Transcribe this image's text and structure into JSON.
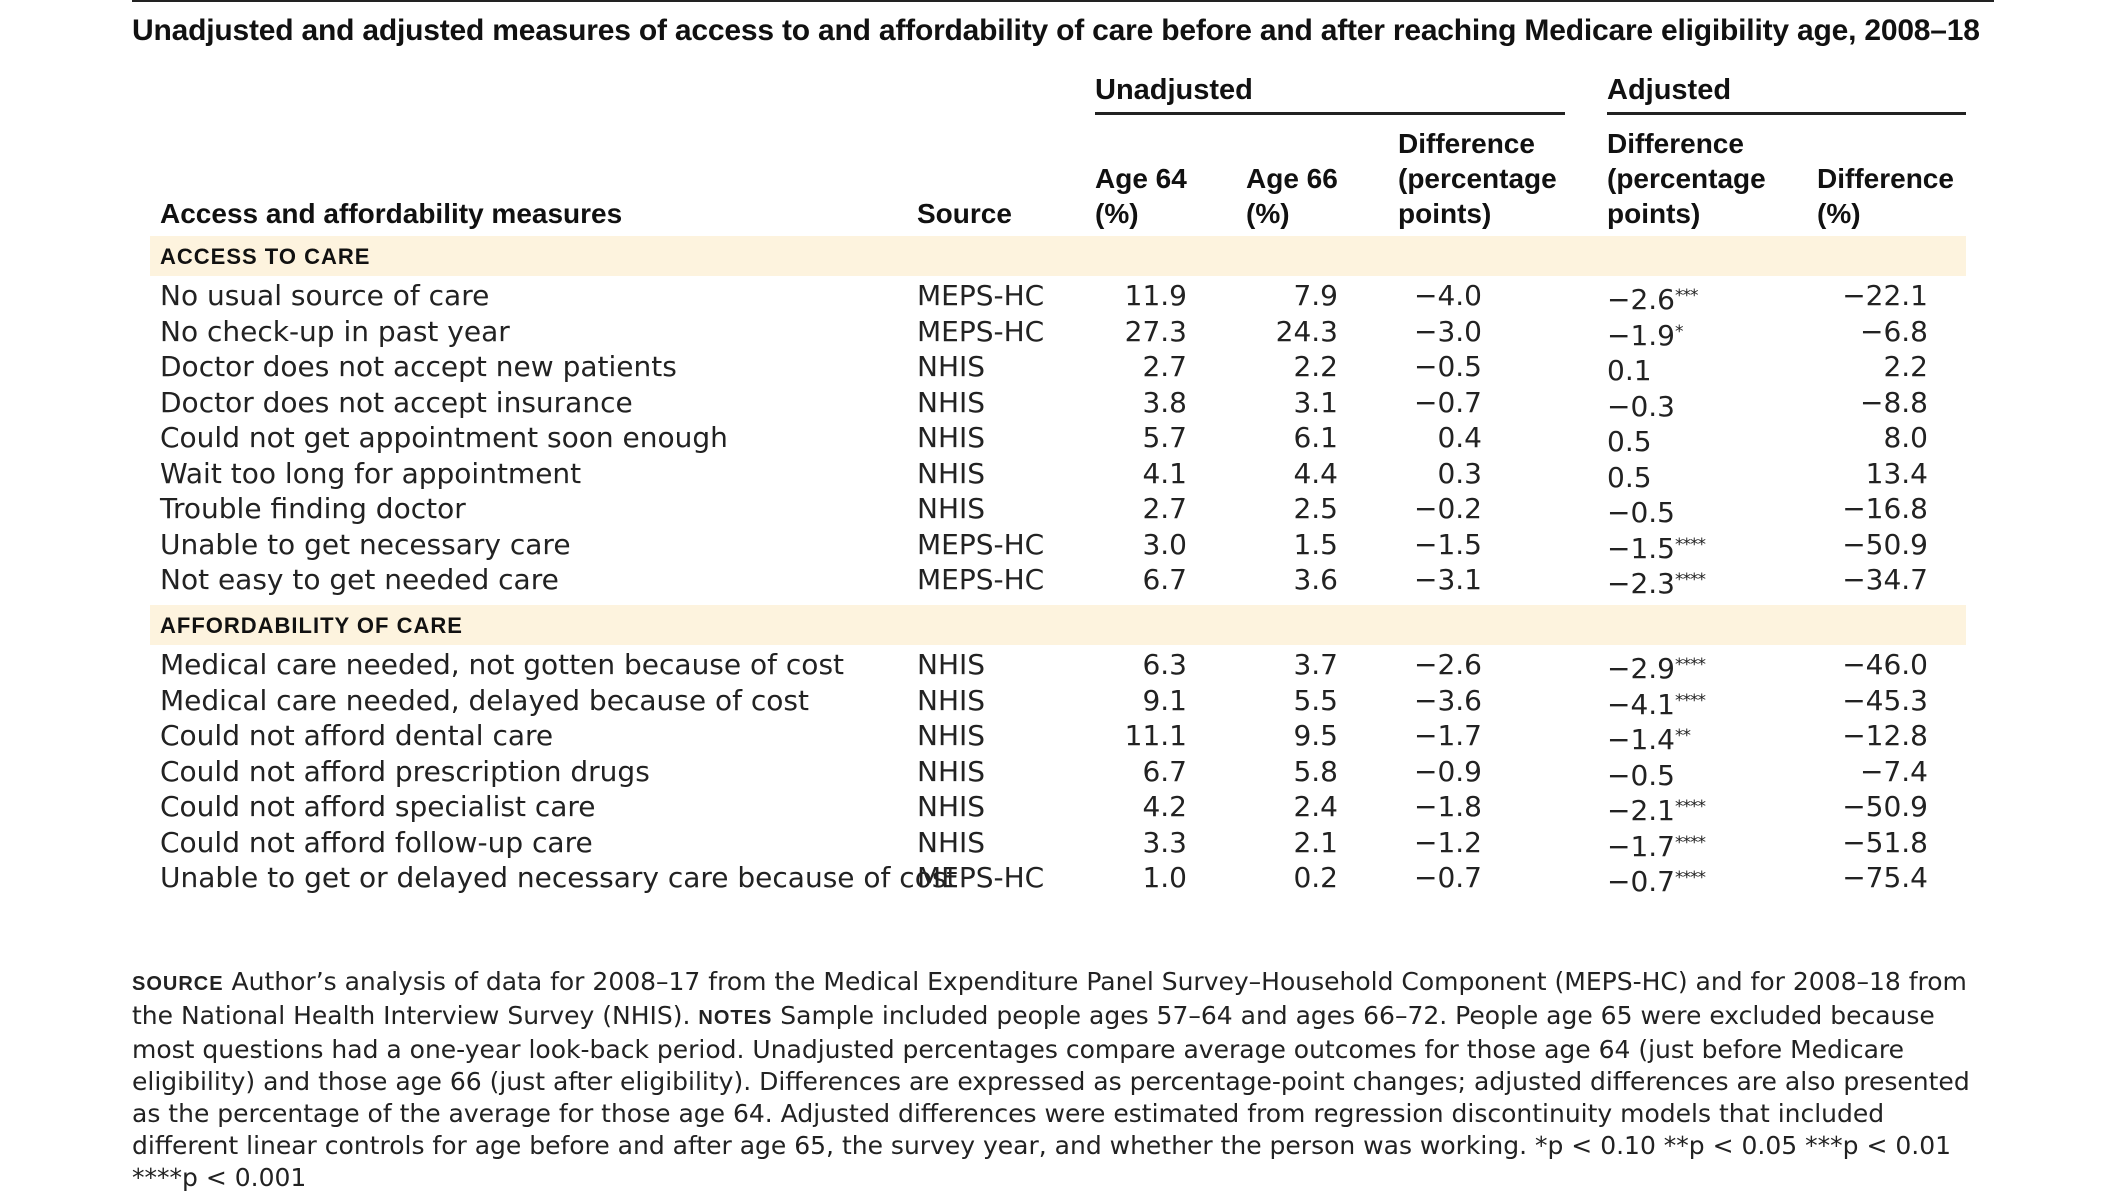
{
  "title": "Unadjusted and adjusted measures of access to and affordability of care before and after reaching Medicare eligibility age, 2008–18",
  "groups": {
    "unadjusted": "Unadjusted",
    "adjusted": "Adjusted"
  },
  "columns": {
    "measure": "Access and affordability measures",
    "source": "Source",
    "age64": [
      "Age 64",
      "(%)"
    ],
    "age66": [
      "Age 66",
      "(%)"
    ],
    "diff_unadj": [
      "Difference",
      "(percentage",
      "points)"
    ],
    "diff_adj_pp": [
      "Difference",
      "(percentage",
      "points)"
    ],
    "diff_adj_pct": [
      "Difference",
      "(%)"
    ]
  },
  "sections": [
    {
      "title": "ACCESS TO CARE",
      "rows": [
        {
          "measure": "No usual source of care",
          "source": "MEPS-HC",
          "age64": "11.9",
          "age66": "7.9",
          "diff": "−4.0",
          "adj": "−2.6",
          "stars": "***",
          "adj_pct": "−22.1"
        },
        {
          "measure": "No check-up in past year",
          "source": "MEPS-HC",
          "age64": "27.3",
          "age66": "24.3",
          "diff": "−3.0",
          "adj": "−1.9",
          "stars": "*",
          "adj_pct": "−6.8"
        },
        {
          "measure": "Doctor does not accept new patients",
          "source": "NHIS",
          "age64": "2.7",
          "age66": "2.2",
          "diff": "−0.5",
          "adj": "0.1",
          "stars": "",
          "adj_pct": "2.2"
        },
        {
          "measure": "Doctor does not accept insurance",
          "source": "NHIS",
          "age64": "3.8",
          "age66": "3.1",
          "diff": "−0.7",
          "adj": "−0.3",
          "stars": "",
          "adj_pct": "−8.8"
        },
        {
          "measure": "Could not get appointment soon enough",
          "source": "NHIS",
          "age64": "5.7",
          "age66": "6.1",
          "diff": "0.4",
          "adj": "0.5",
          "stars": "",
          "adj_pct": "8.0"
        },
        {
          "measure": "Wait too long for appointment",
          "source": "NHIS",
          "age64": "4.1",
          "age66": "4.4",
          "diff": "0.3",
          "adj": "0.5",
          "stars": "",
          "adj_pct": "13.4"
        },
        {
          "measure": "Trouble finding doctor",
          "source": "NHIS",
          "age64": "2.7",
          "age66": "2.5",
          "diff": "−0.2",
          "adj": "−0.5",
          "stars": "",
          "adj_pct": "−16.8"
        },
        {
          "measure": "Unable to get necessary care",
          "source": "MEPS-HC",
          "age64": "3.0",
          "age66": "1.5",
          "diff": "−1.5",
          "adj": "−1.5",
          "stars": "****",
          "adj_pct": "−50.9"
        },
        {
          "measure": "Not easy to get needed care",
          "source": "MEPS-HC",
          "age64": "6.7",
          "age66": "3.6",
          "diff": "−3.1",
          "adj": "−2.3",
          "stars": "****",
          "adj_pct": "−34.7"
        }
      ]
    },
    {
      "title": "AFFORDABILITY OF CARE",
      "rows": [
        {
          "measure": "Medical care needed, not gotten because of cost",
          "source": "NHIS",
          "age64": "6.3",
          "age66": "3.7",
          "diff": "−2.6",
          "adj": "−2.9",
          "stars": "****",
          "adj_pct": "−46.0"
        },
        {
          "measure": "Medical care needed, delayed because of cost",
          "source": "NHIS",
          "age64": "9.1",
          "age66": "5.5",
          "diff": "−3.6",
          "adj": "−4.1",
          "stars": "****",
          "adj_pct": "−45.3"
        },
        {
          "measure": "Could not afford dental care",
          "source": "NHIS",
          "age64": "11.1",
          "age66": "9.5",
          "diff": "−1.7",
          "adj": "−1.4",
          "stars": "**",
          "adj_pct": "−12.8"
        },
        {
          "measure": "Could not afford prescription drugs",
          "source": "NHIS",
          "age64": "6.7",
          "age66": "5.8",
          "diff": "−0.9",
          "adj": "−0.5",
          "stars": "",
          "adj_pct": "−7.4"
        },
        {
          "measure": "Could not afford specialist care",
          "source": "NHIS",
          "age64": "4.2",
          "age66": "2.4",
          "diff": "−1.8",
          "adj": "−2.1",
          "stars": "****",
          "adj_pct": "−50.9"
        },
        {
          "measure": "Could not afford follow-up care",
          "source": "NHIS",
          "age64": "3.3",
          "age66": "2.1",
          "diff": "−1.2",
          "adj": "−1.7",
          "stars": "****",
          "adj_pct": "−51.8"
        },
        {
          "measure": "Unable to get or delayed necessary care because of cost",
          "source": "MEPS-HC",
          "age64": "1.0",
          "age66": "0.2",
          "diff": "−0.7",
          "adj": "−0.7",
          "stars": "****",
          "adj_pct": "−75.4"
        }
      ]
    }
  ],
  "footer": {
    "source_label": "SOURCE",
    "source_text": "Author’s analysis of data for 2008–17 from the Medical Expenditure Panel Survey–Household Component (MEPS-HC) and for 2008–18 from the National Health Interview Survey (NHIS).",
    "notes_label": "NOTES",
    "notes_text": "Sample included people ages 57–64 and ages 66–72. People age 65 were excluded because most questions had a one-year look-back period. Unadjusted percentages compare average outcomes for those age 64 (just before Medicare eligibility) and those age 66 (just after eligibility). Differences are expressed as percentage-point changes; adjusted differences are also presented as the percentage of the average for those age 64. Adjusted differences were estimated from regression discontinuity models that included different linear controls for age before and after age 65, the survey year, and whether the person was working.",
    "significance": "*p < 0.10 **p < 0.05 ***p < 0.01 ****p < 0.001"
  }
}
